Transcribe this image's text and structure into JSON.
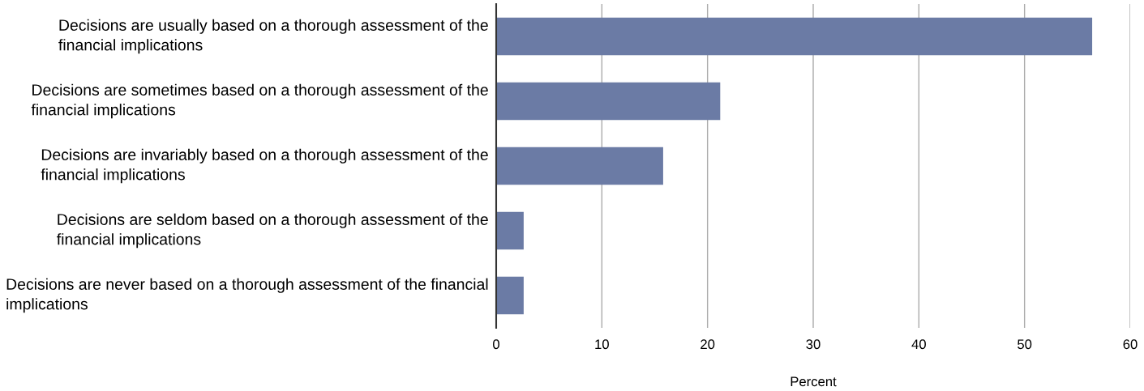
{
  "chart_data": {
    "type": "bar",
    "orientation": "horizontal",
    "xlabel": "Percent",
    "categories": [
      "Decisions are usually based on a thorough assessment of the financial implications",
      "Decisions are sometimes based on a thorough assessment of the financial implications",
      "Decisions are invariably based on a thorough assessment of the financial implications",
      "Decisions are seldom based on a thorough assessment of the financial implications",
      "Decisions are never based on a thorough assessment of the financial implications"
    ],
    "values": [
      56.4,
      21.2,
      15.8,
      2.6,
      2.6
    ],
    "color": "#6b7ba5",
    "xlim": [
      0,
      60
    ],
    "xticks": [
      0,
      10,
      20,
      30,
      40,
      50,
      60
    ],
    "grid": "x"
  }
}
